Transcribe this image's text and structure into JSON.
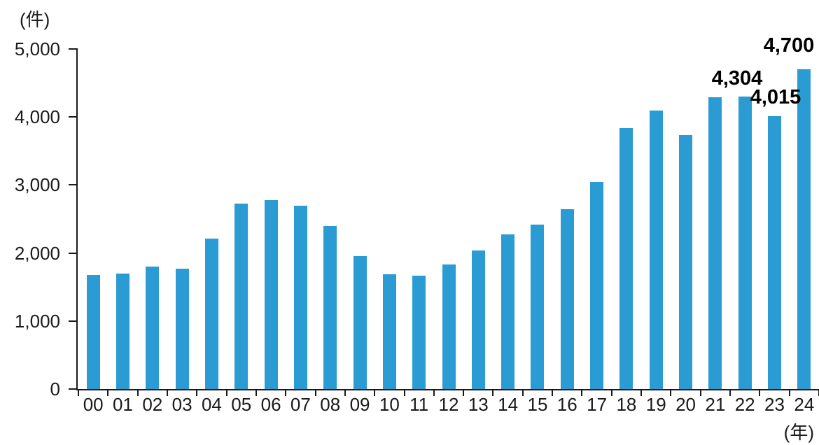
{
  "chart_data": {
    "type": "bar",
    "title": "",
    "y_unit_label": "(件)",
    "x_unit_label": "(年)",
    "categories": [
      "00",
      "01",
      "02",
      "03",
      "04",
      "05",
      "06",
      "07",
      "08",
      "09",
      "10",
      "11",
      "12",
      "13",
      "14",
      "15",
      "16",
      "17",
      "18",
      "19",
      "20",
      "21",
      "22",
      "23",
      "24"
    ],
    "values": [
      1675,
      1695,
      1800,
      1765,
      2210,
      2725,
      2775,
      2695,
      2400,
      1950,
      1690,
      1670,
      1835,
      2040,
      2270,
      2420,
      2640,
      3050,
      3840,
      4090,
      3730,
      4290,
      4304,
      4015,
      4700
    ],
    "data_labels": [
      {
        "category": "22",
        "text": "4,304"
      },
      {
        "category": "23",
        "text": "4,015"
      },
      {
        "category": "24",
        "text": "4,700"
      }
    ],
    "y_axis": {
      "min": 0,
      "max": 5000,
      "step": 1000,
      "tick_labels": [
        "0",
        "1,000",
        "2,000",
        "3,000",
        "4,000",
        "5,000"
      ]
    },
    "bar_color": "#2B9BD3",
    "axis_color": "#1a1a1a",
    "grid": false,
    "legend_position": "none"
  }
}
